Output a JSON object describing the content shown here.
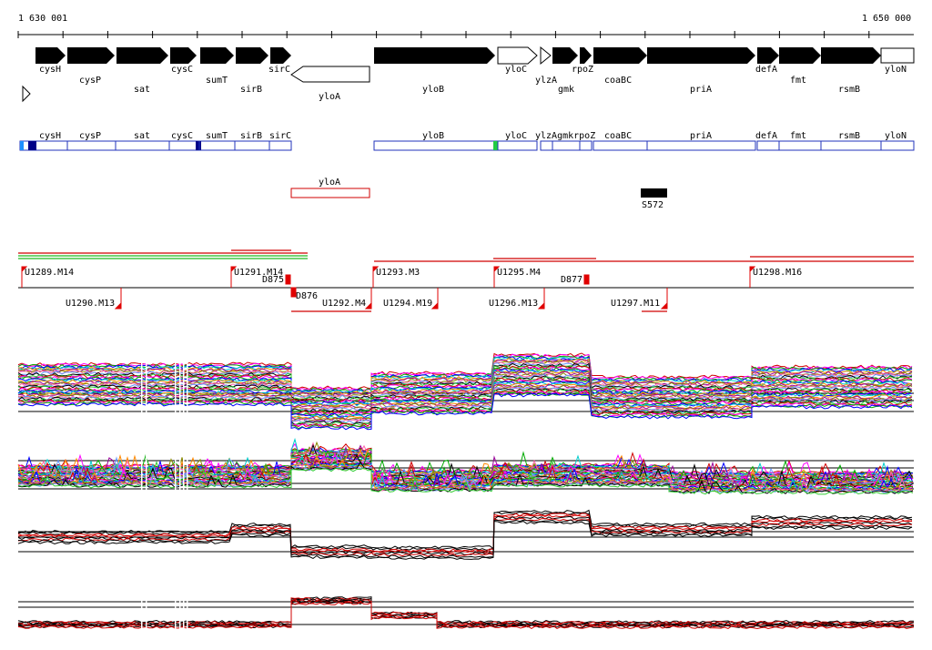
{
  "ruler": {
    "start_label": "1 630 001",
    "end_label": "1 650 000"
  },
  "genes": [
    {
      "name": "cysH",
      "strand": "+"
    },
    {
      "name": "cysP",
      "strand": "+"
    },
    {
      "name": "sat",
      "strand": "+"
    },
    {
      "name": "cysC",
      "strand": "+"
    },
    {
      "name": "sumT",
      "strand": "+"
    },
    {
      "name": "sirB",
      "strand": "+"
    },
    {
      "name": "sirC",
      "strand": "+"
    },
    {
      "name": "yloA",
      "strand": "-"
    },
    {
      "name": "yloB",
      "strand": "+"
    },
    {
      "name": "yloC",
      "strand": "+"
    },
    {
      "name": "ylzA",
      "strand": "+"
    },
    {
      "name": "gmk",
      "strand": "+"
    },
    {
      "name": "rpoZ",
      "strand": "+"
    },
    {
      "name": "coaBC",
      "strand": "+"
    },
    {
      "name": "priA",
      "strand": "+"
    },
    {
      "name": "defA",
      "strand": "+"
    },
    {
      "name": "fmt",
      "strand": "+"
    },
    {
      "name": "rsmB",
      "strand": "+"
    },
    {
      "name": "yloN",
      "strand": "+"
    }
  ],
  "operon_track": {
    "labels": [
      "cysH",
      "cysP",
      "sat",
      "cysC",
      "sumT",
      "sirB",
      "sirC",
      "yloB",
      "yloC",
      "ylzA",
      "gmk",
      "rpoZ",
      "coaBC",
      "priA",
      "defA",
      "fmt",
      "rsmB",
      "yloN"
    ],
    "label_ylzA_gmk_rpoZ": "ylzAgmkrpoZ"
  },
  "antisense_track": {
    "label": "yloA"
  },
  "feature_marker": {
    "label": "S572"
  },
  "transcription_units": [
    {
      "label": "U1289.M14"
    },
    {
      "label": "U1290.M13"
    },
    {
      "label": "U1291.M14"
    },
    {
      "label": "D875"
    },
    {
      "label": "D876"
    },
    {
      "label": "U1292.M4"
    },
    {
      "label": "U1293.M3"
    },
    {
      "label": "U1294.M19"
    },
    {
      "label": "U1295.M4"
    },
    {
      "label": "U1296.M13"
    },
    {
      "label": "D877"
    },
    {
      "label": "U1297.M11"
    },
    {
      "label": "U1298.M16"
    }
  ],
  "colors": {
    "gene_fill": "#000000",
    "operon_box": "#1f2fbf",
    "tu_marker": "#e00000",
    "accent_green": "#22bb22",
    "accent_cyan": "#1e90ff"
  }
}
